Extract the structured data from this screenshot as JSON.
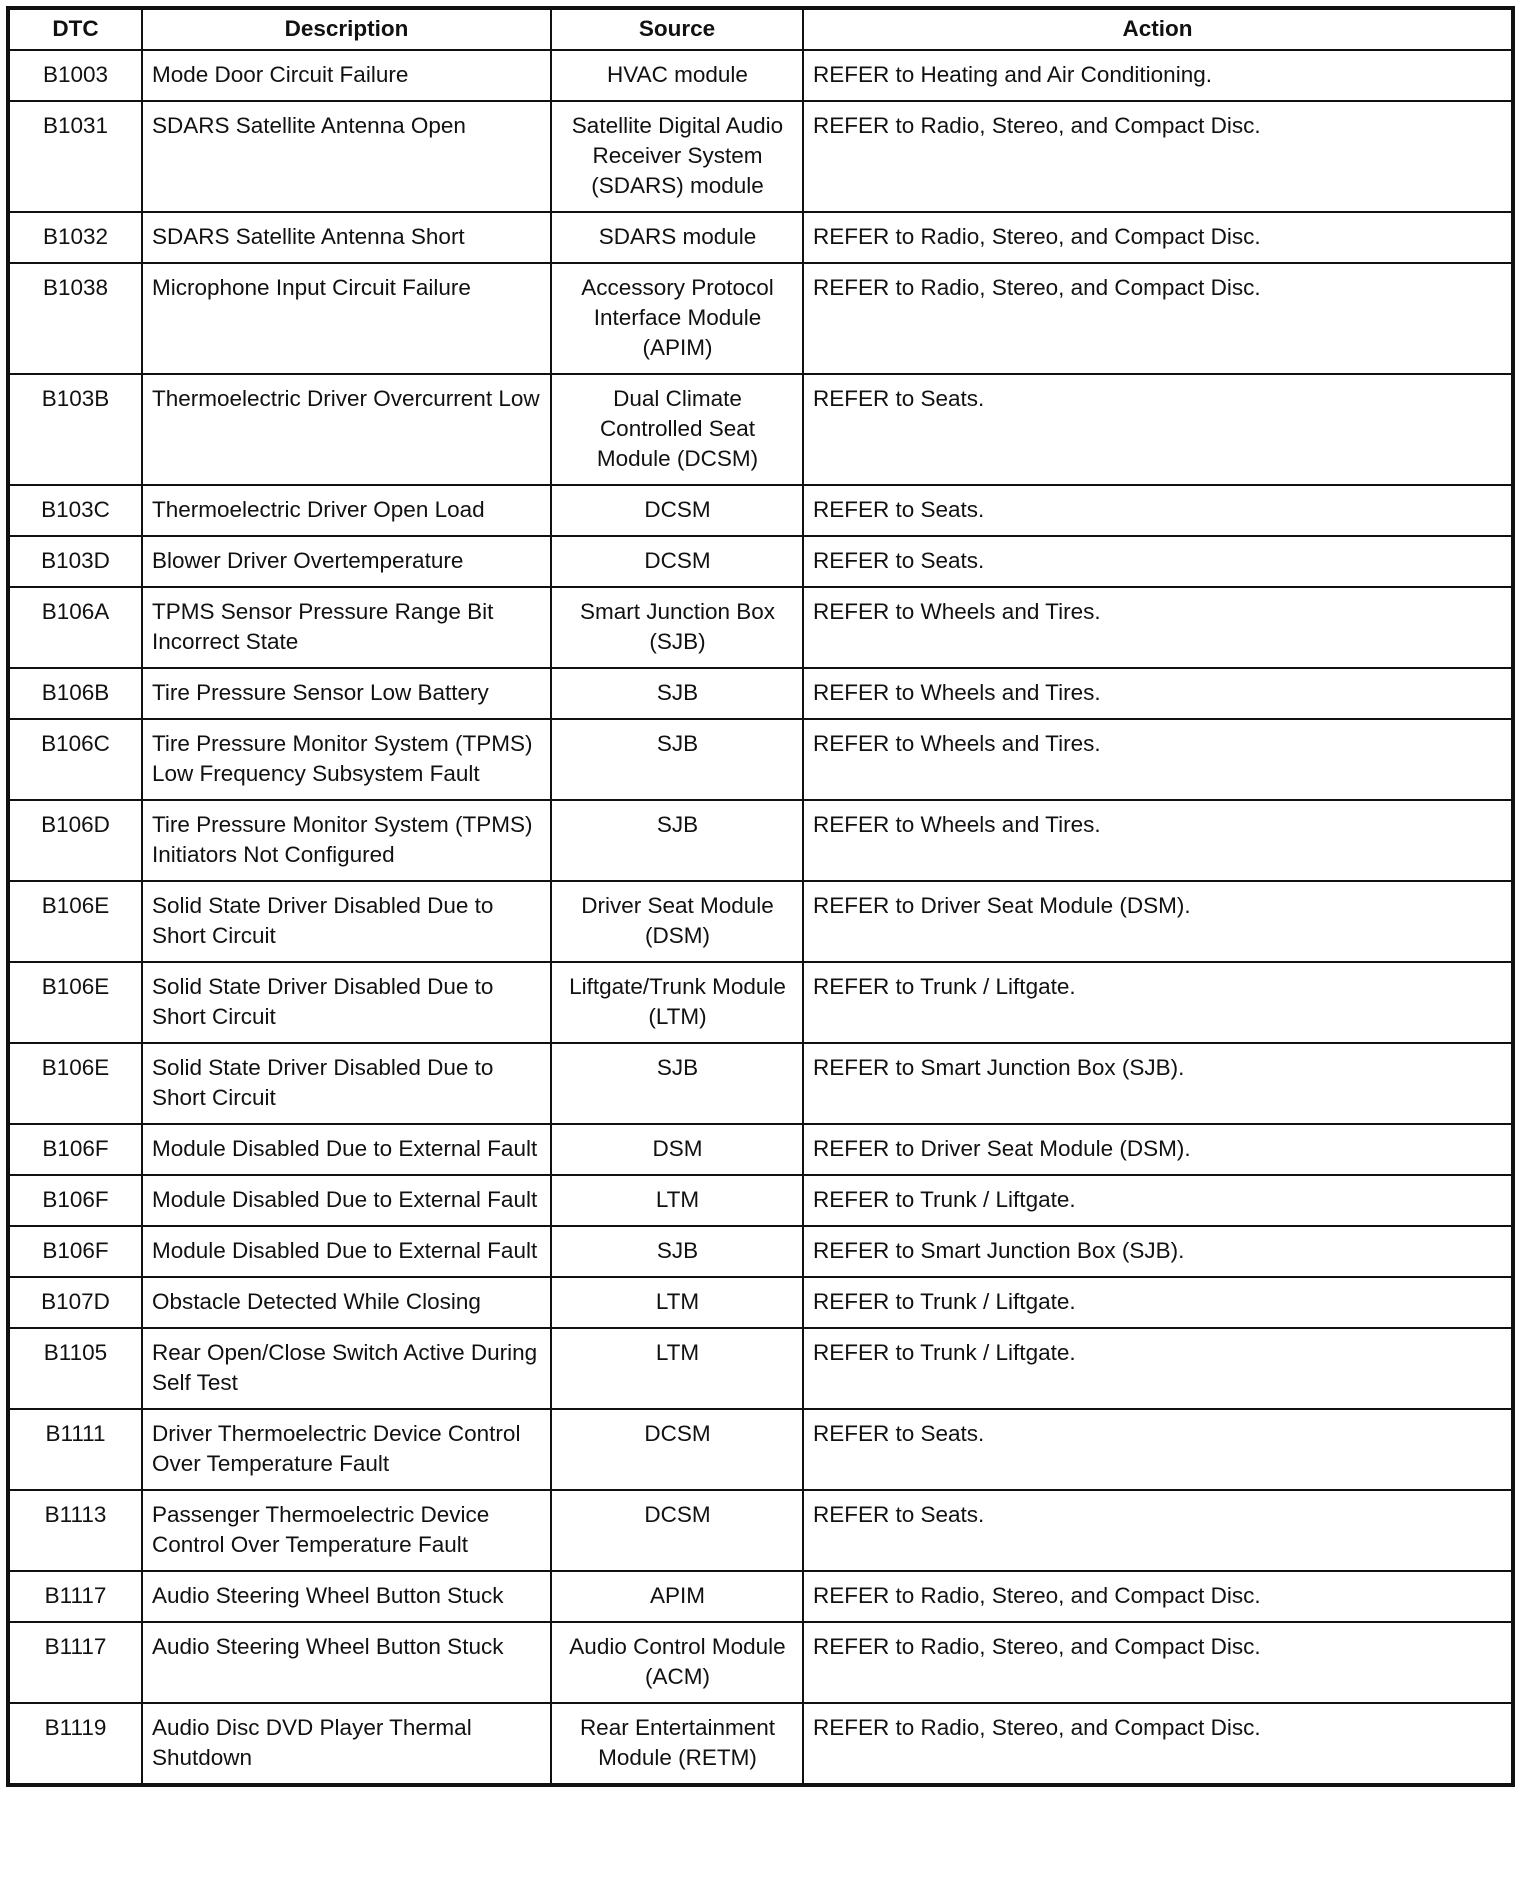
{
  "table": {
    "headers": [
      "DTC",
      "Description",
      "Source",
      "Action"
    ],
    "rows": [
      [
        "B1003",
        "Mode Door Circuit Failure",
        "HVAC module",
        "REFER to Heating and Air Conditioning."
      ],
      [
        "B1031",
        "SDARS Satellite Antenna Open",
        "Satellite Digital Audio Receiver System (SDARS) module",
        "REFER to Radio, Stereo, and Compact Disc."
      ],
      [
        "B1032",
        "SDARS Satellite Antenna Short",
        "SDARS module",
        "REFER to Radio, Stereo, and Compact Disc."
      ],
      [
        "B1038",
        "Microphone Input Circuit Failure",
        "Accessory Protocol Interface Module (APIM)",
        "REFER to Radio, Stereo, and Compact Disc."
      ],
      [
        "B103B",
        "Thermoelectric Driver Overcurrent Low",
        "Dual Climate Controlled Seat Module (DCSM)",
        "REFER to Seats."
      ],
      [
        "B103C",
        "Thermoelectric Driver Open Load",
        "DCSM",
        "REFER to Seats."
      ],
      [
        "B103D",
        "Blower Driver Overtemperature",
        "DCSM",
        "REFER to Seats."
      ],
      [
        "B106A",
        "TPMS Sensor Pressure Range Bit Incorrect State",
        "Smart Junction Box (SJB)",
        "REFER to Wheels and Tires."
      ],
      [
        "B106B",
        "Tire Pressure Sensor Low Battery",
        "SJB",
        "REFER to Wheels and Tires."
      ],
      [
        "B106C",
        "Tire Pressure Monitor System (TPMS) Low Frequency Subsystem Fault",
        "SJB",
        "REFER to Wheels and Tires."
      ],
      [
        "B106D",
        "Tire Pressure Monitor System (TPMS) Initiators Not Configured",
        "SJB",
        "REFER to Wheels and Tires."
      ],
      [
        "B106E",
        "Solid State Driver Disabled Due to Short Circuit",
        "Driver Seat Module (DSM)",
        "REFER to Driver Seat Module (DSM)."
      ],
      [
        "B106E",
        "Solid State Driver Disabled Due to Short Circuit",
        "Liftgate/Trunk Module (LTM)",
        "REFER to Trunk / Liftgate."
      ],
      [
        "B106E",
        "Solid State Driver Disabled Due to Short Circuit",
        "SJB",
        "REFER to Smart Junction Box (SJB)."
      ],
      [
        "B106F",
        "Module Disabled Due to External Fault",
        "DSM",
        "REFER to Driver Seat Module (DSM)."
      ],
      [
        "B106F",
        "Module Disabled Due to External Fault",
        "LTM",
        "REFER to Trunk / Liftgate."
      ],
      [
        "B106F",
        "Module Disabled Due to External Fault",
        "SJB",
        "REFER to Smart Junction Box (SJB)."
      ],
      [
        "B107D",
        "Obstacle Detected While Closing",
        "LTM",
        "REFER to Trunk / Liftgate."
      ],
      [
        "B1105",
        "Rear Open/Close Switch Active During Self Test",
        "LTM",
        "REFER to Trunk / Liftgate."
      ],
      [
        "B1111",
        "Driver Thermoelectric Device Control Over Temperature Fault",
        "DCSM",
        "REFER to Seats."
      ],
      [
        "B1113",
        "Passenger Thermoelectric Device Control Over Temperature Fault",
        "DCSM",
        "REFER to Seats."
      ],
      [
        "B1117",
        "Audio Steering Wheel Button Stuck",
        "APIM",
        "REFER to Radio, Stereo, and Compact Disc."
      ],
      [
        "B1117",
        "Audio Steering Wheel Button Stuck",
        "Audio Control Module (ACM)",
        "REFER to Radio, Stereo, and Compact Disc."
      ],
      [
        "B1119",
        "Audio Disc DVD Player Thermal Shutdown",
        "Rear Entertainment Module (RETM)",
        "REFER to Radio, Stereo, and Compact Disc."
      ]
    ]
  }
}
